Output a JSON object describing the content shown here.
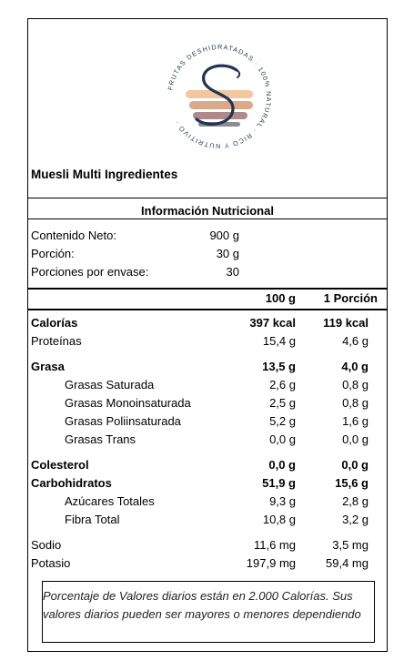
{
  "logo": {
    "ring_text": "FRUTAS DESHIDRATADAS · 100% NATURAL · RICO Y NUTRITIVO ·",
    "colors": {
      "navy": "#1f3550",
      "peach": "#f2c7a0",
      "tan": "#d9a98a",
      "mauve": "#b08a8a",
      "gray": "#8e8a96"
    }
  },
  "product_name": "Muesli Multi Ingredientes",
  "info_title": "Información Nutricional",
  "meta": [
    {
      "label": "Contenido Neto:",
      "value": "900 g"
    },
    {
      "label": "Porción:",
      "value": "30 g"
    },
    {
      "label": "Porciones por envase:",
      "value": "30"
    }
  ],
  "columns": {
    "per100": "100 g",
    "portion": "1 Porción"
  },
  "nutrients": [
    {
      "name": "Calorías",
      "per100": "397 kcal",
      "portion": "119 kcal",
      "bold": true
    },
    {
      "name": "Proteínas",
      "per100": "15,4 g",
      "portion": "4,6 g"
    },
    {
      "name": "Grasa",
      "per100": "13,5 g",
      "portion": "4,0 g",
      "bold": true
    },
    {
      "name": "Grasas Saturada",
      "per100": "2,6 g",
      "portion": "0,8 g",
      "indent": true
    },
    {
      "name": "Grasas Monoinsaturada",
      "per100": "2,5 g",
      "portion": "0,8 g",
      "indent": true
    },
    {
      "name": "Grasas Poliinsaturada",
      "per100": "5,2 g",
      "portion": "1,6 g",
      "indent": true
    },
    {
      "name": "Grasas Trans",
      "per100": "0,0 g",
      "portion": "0,0 g",
      "indent": true
    },
    {
      "name": "Colesterol",
      "per100": "0,0 g",
      "portion": "0,0 g",
      "bold": true
    },
    {
      "name": "Carbohidratos",
      "per100": "51,9 g",
      "portion": "15,6 g",
      "bold": true
    },
    {
      "name": "Azúcares Totales",
      "per100": "9,3 g",
      "portion": "2,8 g",
      "indent": true
    },
    {
      "name": "Fibra Total",
      "per100": "10,8 g",
      "portion": "3,2 g",
      "indent": true
    },
    {
      "name": "Sodio",
      "per100": "11,6 mg",
      "portion": "3,5 mg"
    },
    {
      "name": "Potasio",
      "per100": "197,9 mg",
      "portion": "59,4 mg"
    }
  ],
  "footnote": {
    "line1": "Porcentaje de Valores diarios están en 2.000 Calorías. Sus",
    "line2": "valores diarios pueden ser mayores o menores dependiendo"
  }
}
